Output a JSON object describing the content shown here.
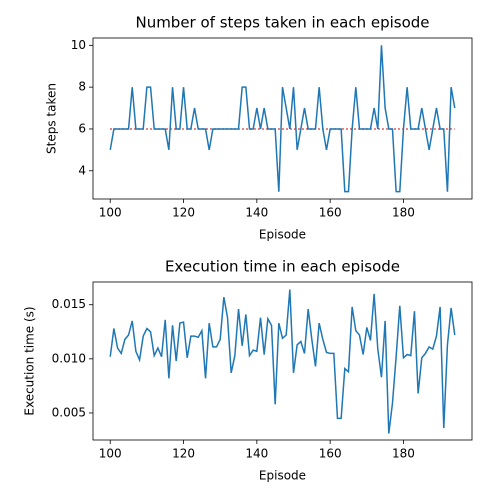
{
  "chart_data": [
    {
      "type": "line",
      "title": "Number of steps taken in each episode",
      "x_label": "Episode",
      "y_label": "Steps taken",
      "x": [
        100,
        101,
        102,
        103,
        104,
        105,
        106,
        107,
        108,
        109,
        110,
        111,
        112,
        113,
        114,
        115,
        116,
        117,
        118,
        119,
        120,
        121,
        122,
        123,
        124,
        125,
        126,
        127,
        128,
        129,
        130,
        131,
        132,
        133,
        134,
        135,
        136,
        137,
        138,
        139,
        140,
        141,
        142,
        143,
        144,
        145,
        146,
        147,
        148,
        149,
        150,
        151,
        152,
        153,
        154,
        155,
        156,
        157,
        158,
        159,
        160,
        161,
        162,
        163,
        164,
        165,
        166,
        167,
        168,
        169,
        170,
        171,
        172,
        173,
        174,
        175,
        176,
        177,
        178,
        179,
        180,
        181,
        182,
        183,
        184,
        185,
        186,
        187,
        188,
        189,
        190,
        191,
        192,
        193,
        194
      ],
      "series": [
        {
          "color": "#1f77b4",
          "values": [
            5,
            6,
            6,
            6,
            6,
            6,
            8,
            6,
            6,
            6,
            8,
            8,
            6,
            6,
            6,
            6,
            5,
            8,
            6,
            6,
            8,
            6,
            6,
            7,
            6,
            6,
            6,
            5,
            6,
            6,
            6,
            6,
            6,
            6,
            6,
            6,
            8,
            8,
            6,
            6,
            7,
            6,
            7,
            6,
            6,
            6,
            3,
            8,
            7,
            6,
            8,
            5,
            6,
            7,
            6,
            6,
            6,
            8,
            6,
            5,
            6,
            6,
            6,
            6,
            3,
            3,
            6,
            8,
            6,
            6,
            6,
            6,
            7,
            6,
            10,
            7,
            6,
            6,
            3,
            3,
            6,
            8,
            6,
            6,
            6,
            7,
            6,
            5,
            6,
            7,
            6,
            6,
            3,
            8,
            7
          ]
        }
      ],
      "reference_line": {
        "value": 6,
        "color": "#d62728"
      },
      "xlim": [
        95.3,
        198.7
      ],
      "xticks": [
        100,
        120,
        140,
        160,
        180
      ],
      "ylim": [
        2.65,
        10.35
      ],
      "yticks": [
        4,
        6,
        8,
        10
      ]
    },
    {
      "type": "line",
      "title": "Execution time in each episode",
      "x_label": "Episode",
      "y_label": "Execution time (s)",
      "x": [
        100,
        101,
        102,
        103,
        104,
        105,
        106,
        107,
        108,
        109,
        110,
        111,
        112,
        113,
        114,
        115,
        116,
        117,
        118,
        119,
        120,
        121,
        122,
        123,
        124,
        125,
        126,
        127,
        128,
        129,
        130,
        131,
        132,
        133,
        134,
        135,
        136,
        137,
        138,
        139,
        140,
        141,
        142,
        143,
        144,
        145,
        146,
        147,
        148,
        149,
        150,
        151,
        152,
        153,
        154,
        155,
        156,
        157,
        158,
        159,
        160,
        161,
        162,
        163,
        164,
        165,
        166,
        167,
        168,
        169,
        170,
        171,
        172,
        173,
        174,
        175,
        176,
        177,
        178,
        179,
        180,
        181,
        182,
        183,
        184,
        185,
        186,
        187,
        188,
        189,
        190,
        191,
        192,
        193,
        194
      ],
      "series": [
        {
          "color": "#1f77b4",
          "values": [
            0.0102,
            0.0128,
            0.011,
            0.0105,
            0.0118,
            0.0122,
            0.0135,
            0.0107,
            0.0099,
            0.0121,
            0.0128,
            0.0125,
            0.0103,
            0.011,
            0.0102,
            0.0136,
            0.0082,
            0.0131,
            0.0098,
            0.0133,
            0.0134,
            0.0101,
            0.0121,
            0.0121,
            0.012,
            0.0126,
            0.0082,
            0.0133,
            0.0111,
            0.0111,
            0.0118,
            0.0157,
            0.0138,
            0.0087,
            0.0103,
            0.0146,
            0.0112,
            0.0141,
            0.0103,
            0.0108,
            0.0107,
            0.0138,
            0.0104,
            0.0137,
            0.0131,
            0.0058,
            0.0133,
            0.0119,
            0.0122,
            0.0164,
            0.0087,
            0.0113,
            0.0116,
            0.0105,
            0.0146,
            0.0118,
            0.0093,
            0.0133,
            0.0118,
            0.0106,
            0.0105,
            0.0105,
            0.0045,
            0.0045,
            0.0091,
            0.0088,
            0.0148,
            0.0126,
            0.0122,
            0.0104,
            0.0129,
            0.0117,
            0.016,
            0.0109,
            0.0083,
            0.0135,
            0.0031,
            0.0059,
            0.0102,
            0.0149,
            0.0101,
            0.0104,
            0.0103,
            0.0144,
            0.0068,
            0.0101,
            0.0105,
            0.0111,
            0.0109,
            0.0121,
            0.0148,
            0.0036,
            0.0113,
            0.0147,
            0.0122
          ]
        }
      ],
      "xlim": [
        95.3,
        198.7
      ],
      "xticks": [
        100,
        120,
        140,
        160,
        180
      ],
      "ylim": [
        0.0025,
        0.0171
      ],
      "yticks": [
        0.005,
        {
          "value": 0.01,
          "label": "0.010"
        },
        0.015
      ]
    }
  ]
}
